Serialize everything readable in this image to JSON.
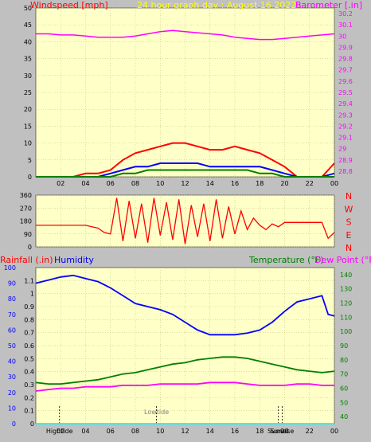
{
  "chart_data": [
    {
      "type": "line",
      "title": "24 hour graph day : August 16 2022",
      "left_axis_label": "Windspeed [mph]",
      "right_axis_label": "Barometer [.in]",
      "x_ticks": [
        "02",
        "04",
        "06",
        "08",
        "10",
        "12",
        "14",
        "16",
        "18",
        "20",
        "22",
        "00"
      ],
      "y_left_ticks": [
        "0",
        "5",
        "10",
        "15",
        "20",
        "25",
        "30",
        "35",
        "40",
        "45",
        "50"
      ],
      "y_left_range": [
        0,
        50
      ],
      "y_right_ticks": [
        "28.8",
        "28.9",
        "29",
        "29.1",
        "29.2",
        "29.3",
        "29.4",
        "29.5",
        "29.6",
        "29.7",
        "29.8",
        "29.9",
        "30",
        "30.1",
        "30.2"
      ],
      "y_right_range": [
        28.75,
        30.25
      ],
      "series": [
        {
          "name": "Barometer",
          "color": "#ff00ff",
          "axis": "right",
          "x": [
            0,
            1,
            2,
            3,
            4,
            5,
            6,
            7,
            8,
            9,
            10,
            11,
            12,
            13,
            14,
            15,
            16,
            17,
            18,
            19,
            20,
            21,
            22,
            23,
            24
          ],
          "y": [
            30.02,
            30.02,
            30.01,
            30.01,
            30.0,
            29.99,
            29.99,
            29.99,
            30.0,
            30.02,
            30.04,
            30.05,
            30.04,
            30.03,
            30.02,
            30.01,
            29.99,
            29.98,
            29.97,
            29.97,
            29.98,
            29.99,
            30.0,
            30.01,
            30.02
          ]
        },
        {
          "name": "Wind gust",
          "color": "#ff0000",
          "axis": "left",
          "x": [
            0,
            1,
            2,
            3,
            4,
            5,
            6,
            7,
            8,
            9,
            10,
            11,
            12,
            13,
            14,
            15,
            16,
            17,
            18,
            19,
            20,
            21,
            22,
            23,
            24
          ],
          "y": [
            0,
            0,
            0,
            0,
            1,
            1,
            2,
            5,
            7,
            8,
            9,
            10,
            10,
            9,
            8,
            8,
            9,
            8,
            7,
            5,
            3,
            0,
            0,
            0,
            4
          ]
        },
        {
          "name": "Wind speed",
          "color": "#0000ff",
          "axis": "left",
          "x": [
            0,
            1,
            2,
            3,
            4,
            5,
            6,
            7,
            8,
            9,
            10,
            11,
            12,
            13,
            14,
            15,
            16,
            17,
            18,
            19,
            20,
            21,
            22,
            23,
            24
          ],
          "y": [
            0,
            0,
            0,
            0,
            0,
            0,
            1,
            2,
            3,
            3,
            4,
            4,
            4,
            4,
            3,
            3,
            3,
            3,
            3,
            2,
            1,
            0,
            0,
            0,
            1
          ]
        },
        {
          "name": "Wind average",
          "color": "#008000",
          "axis": "left",
          "x": [
            0,
            1,
            2,
            3,
            4,
            5,
            6,
            7,
            8,
            9,
            10,
            11,
            12,
            13,
            14,
            15,
            16,
            17,
            18,
            19,
            20,
            21,
            22,
            23,
            24
          ],
          "y": [
            0,
            0,
            0,
            0,
            0,
            0,
            0,
            1,
            1,
            2,
            2,
            2,
            2,
            2,
            2,
            2,
            2,
            2,
            1,
            1,
            0,
            0,
            0,
            0,
            0
          ]
        }
      ]
    },
    {
      "type": "line",
      "title": "",
      "y_ticks": [
        "0",
        "90",
        "180",
        "270",
        "360"
      ],
      "y_range": [
        0,
        360
      ],
      "right_labels": [
        "N",
        "W",
        "S",
        "E",
        "N"
      ],
      "x_ticks": [
        "02",
        "04",
        "06",
        "08",
        "10",
        "12",
        "14",
        "16",
        "18",
        "20",
        "22",
        "00"
      ],
      "series": [
        {
          "name": "Wind direction",
          "color": "#ff0000",
          "x": [
            0,
            2,
            4,
            5,
            5.5,
            6,
            6.5,
            7,
            7.5,
            8,
            8.5,
            9,
            9.5,
            10,
            10.5,
            11,
            11.5,
            12,
            12.5,
            13,
            13.5,
            14,
            14.5,
            15,
            15.5,
            16,
            16.5,
            17,
            17.5,
            18,
            18.5,
            19,
            19.5,
            20,
            21,
            22,
            23,
            23.5,
            24
          ],
          "y": [
            150,
            150,
            150,
            130,
            100,
            90,
            340,
            40,
            320,
            60,
            300,
            30,
            340,
            80,
            310,
            50,
            330,
            20,
            290,
            70,
            300,
            40,
            330,
            60,
            280,
            90,
            250,
            120,
            200,
            150,
            120,
            160,
            140,
            170,
            170,
            170,
            170,
            60,
            100
          ]
        }
      ]
    },
    {
      "type": "line",
      "title": "",
      "left_axis_label": "Rainfall (.in)",
      "left_axis_label2": "Humidity",
      "right_axis_label": "Temperature (°F)",
      "right_axis_label2": "Dew Point (°F)",
      "y_left_ticks": [
        "0",
        "0.1",
        "0.2",
        "0.3",
        "0.4",
        "0.5",
        "0.6",
        "0.7",
        "0.8",
        "0.9",
        "1",
        "1.1"
      ],
      "y_left_range": [
        0,
        1.2
      ],
      "y_humidity_ticks": [
        "0",
        "10",
        "20",
        "30",
        "40",
        "50",
        "60",
        "70",
        "80",
        "90",
        "100"
      ],
      "y_humidity_range": [
        0,
        100
      ],
      "y_right_ticks": [
        "40",
        "50",
        "60",
        "70",
        "80",
        "90",
        "100",
        "110",
        "120",
        "130",
        "140"
      ],
      "y_right_range": [
        35,
        145
      ],
      "x_ticks": [
        "02",
        "04",
        "06",
        "08",
        "10",
        "12",
        "14",
        "16",
        "18",
        "20",
        "22",
        "00"
      ],
      "annotations": [
        "Hightide",
        "Lowtide",
        "Sunset",
        "Sunrise"
      ],
      "series": [
        {
          "name": "Humidity",
          "color": "#0000ff",
          "axis": "humidity",
          "x": [
            0,
            1,
            2,
            3,
            4,
            5,
            6,
            7,
            8,
            9,
            10,
            11,
            12,
            13,
            14,
            15,
            16,
            17,
            18,
            19,
            20,
            21,
            22,
            23,
            23.5,
            24
          ],
          "y": [
            90,
            92,
            94,
            95,
            93,
            91,
            87,
            82,
            77,
            75,
            73,
            70,
            65,
            60,
            57,
            57,
            57,
            58,
            60,
            65,
            72,
            78,
            80,
            82,
            70,
            69
          ]
        },
        {
          "name": "Temperature",
          "color": "#008000",
          "axis": "right",
          "x": [
            0,
            1,
            2,
            3,
            4,
            5,
            6,
            7,
            8,
            9,
            10,
            11,
            12,
            13,
            14,
            15,
            16,
            17,
            18,
            19,
            20,
            21,
            22,
            23,
            24
          ],
          "y": [
            64,
            63,
            63,
            64,
            65,
            66,
            68,
            70,
            71,
            73,
            75,
            77,
            78,
            80,
            81,
            82,
            82,
            81,
            79,
            77,
            75,
            73,
            72,
            71,
            72
          ]
        },
        {
          "name": "Dew Point",
          "color": "#ff00ff",
          "axis": "right",
          "x": [
            0,
            1,
            2,
            3,
            4,
            5,
            6,
            7,
            8,
            9,
            10,
            11,
            12,
            13,
            14,
            15,
            16,
            17,
            18,
            19,
            20,
            21,
            22,
            23,
            24
          ],
          "y": [
            58,
            59,
            60,
            60,
            61,
            61,
            61,
            62,
            62,
            62,
            63,
            63,
            63,
            63,
            64,
            64,
            64,
            63,
            62,
            62,
            62,
            63,
            63,
            62,
            62
          ]
        },
        {
          "name": "Rainfall",
          "color": "#00ffff",
          "axis": "left",
          "x": [
            0,
            24
          ],
          "y": [
            0,
            0
          ]
        }
      ]
    }
  ]
}
